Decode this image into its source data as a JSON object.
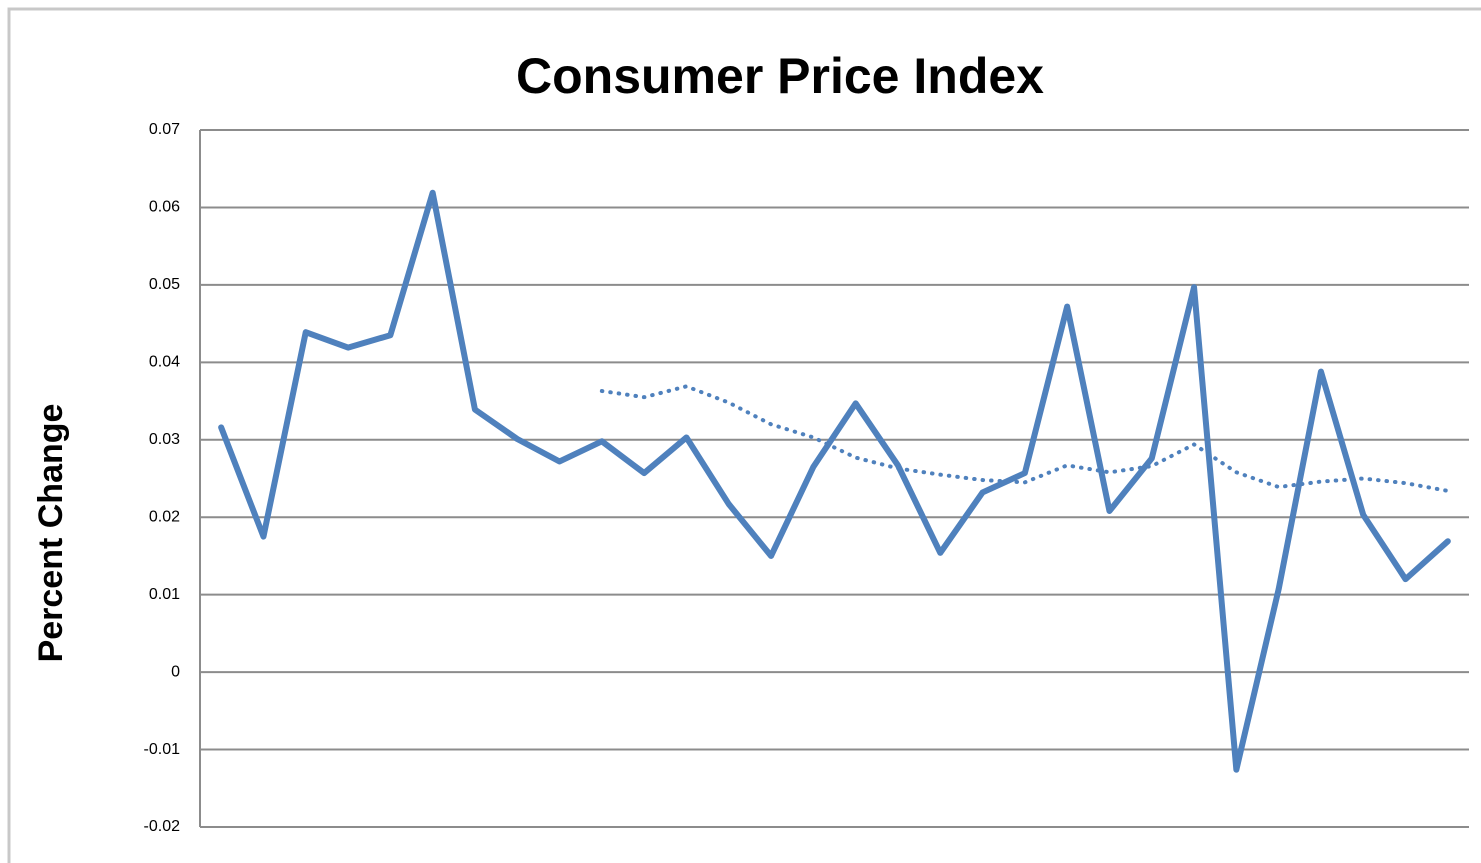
{
  "chart_data": {
    "type": "line",
    "title": "Consumer Price Index",
    "y_label": "Percent Change",
    "categories": [
      null,
      null,
      null,
      null,
      null,
      null,
      null,
      null,
      null,
      null,
      null,
      null,
      null,
      null,
      null,
      null,
      null,
      null,
      null,
      null,
      null,
      null,
      null,
      null,
      null,
      null,
      null,
      null,
      null,
      null
    ],
    "series": [
      {
        "color": "#4f81bd",
        "style": "solid",
        "values": [
          0.0316,
          0.0175,
          0.0439,
          0.0419,
          0.0435,
          0.0619,
          0.0339,
          0.0301,
          0.0272,
          0.0298,
          0.0257,
          0.0303,
          0.0217,
          0.015,
          0.0265,
          0.0347,
          0.0267,
          0.0154,
          0.0232,
          0.0257,
          0.0472,
          0.0208,
          0.0276,
          0.0497,
          -0.0126,
          0.0107,
          0.0388,
          0.0203,
          0.012,
          0.0169
        ]
      },
      {
        "color": "#4f81bd",
        "style": "dotted",
        "values": [
          null,
          null,
          null,
          null,
          null,
          null,
          null,
          null,
          null,
          0.0363,
          0.0355,
          0.0369,
          0.0348,
          0.032,
          0.0303,
          0.0277,
          0.0263,
          0.0255,
          0.0248,
          0.0245,
          0.0267,
          0.0258,
          0.0266,
          0.0294,
          0.0258,
          0.0239,
          0.0246,
          0.025,
          0.0244,
          0.0234
        ]
      }
    ],
    "ylim": [
      -0.02,
      0.07
    ],
    "yticks": [
      -0.02,
      -0.01,
      0,
      0.01,
      0.02,
      0.03,
      0.04,
      0.05,
      0.06,
      0.07
    ],
    "grid": true
  }
}
